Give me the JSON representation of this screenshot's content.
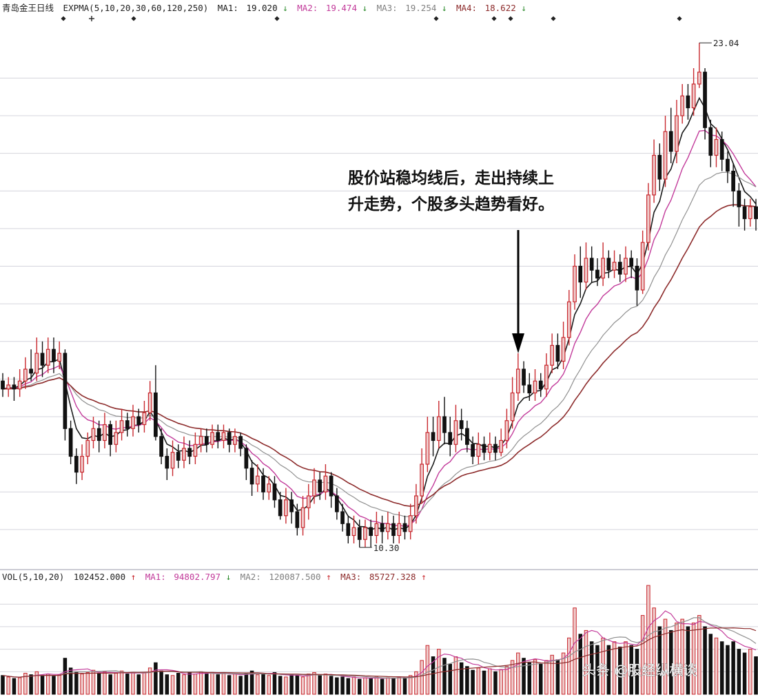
{
  "colors": {
    "up": "#c8282e",
    "down": "#111111",
    "ma1": "#1a1a1a",
    "ma2": "#c23a9a",
    "ma3": "#909090",
    "ma4": "#8c2a2a",
    "grid": "#d4d4dc",
    "sep": "#9a9aa8",
    "up_fill": "#efcaca"
  },
  "header": {
    "title": "青岛金王日线",
    "indicator": "EXPMA(5,10,20,30,60,120,250)",
    "ma1_label": "MA1:",
    "ma1_value": "19.020",
    "ma1_dir": "↓",
    "ma2_label": "MA2:",
    "ma2_value": "19.474",
    "ma2_dir": "↓",
    "ma3_label": "MA3:",
    "ma3_value": "19.254",
    "ma3_dir": "↓",
    "ma4_label": "MA4:",
    "ma4_value": "18.622",
    "ma4_dir": "↓"
  },
  "vol_header": {
    "indicator": "VOL(5,10,20)",
    "value": "102452.000",
    "value_dir": "↑",
    "ma1_label": "MA1:",
    "ma1_value": "94802.797",
    "ma1_dir": "↓",
    "ma2_label": "MA2:",
    "ma2_value": "120087.500",
    "ma2_dir": "↑",
    "ma3_label": "MA3:",
    "ma3_value": "85727.328",
    "ma3_dir": "↑"
  },
  "annotation": {
    "line1": "股价站稳均线后，走出持续上",
    "line2": "升走势，个股多头趋势看好。"
  },
  "watermark": "头条 @股经纵横谈",
  "chart_data": {
    "type": "candlestick",
    "title": "青岛金王日线",
    "high_label": "23.04",
    "low_label": "10.30",
    "high_value": 23.04,
    "low_value": 10.3,
    "price_range": [
      10.0,
      23.6
    ],
    "price_gridlines": [
      10.75,
      11.7,
      12.65,
      13.6,
      14.55,
      15.5,
      16.45,
      17.4,
      18.35,
      19.3,
      20.25,
      21.2,
      22.15
    ],
    "candles": [
      [
        14.5,
        14.3,
        14.7,
        14.1
      ],
      [
        14.3,
        14.4,
        14.6,
        14.1
      ],
      [
        14.4,
        14.3,
        14.6,
        14.0
      ],
      [
        14.3,
        14.5,
        14.8,
        14.1
      ],
      [
        14.5,
        14.8,
        15.1,
        14.3
      ],
      [
        14.8,
        14.7,
        15.3,
        14.5
      ],
      [
        14.7,
        15.2,
        15.6,
        14.5
      ],
      [
        15.2,
        14.9,
        15.5,
        14.6
      ],
      [
        14.9,
        15.3,
        15.6,
        14.7
      ],
      [
        15.3,
        15.0,
        15.6,
        14.7
      ],
      [
        15.0,
        15.2,
        15.5,
        14.8
      ],
      [
        15.2,
        13.3,
        15.3,
        13.0
      ],
      [
        13.3,
        12.6,
        13.5,
        12.4
      ],
      [
        12.6,
        12.2,
        12.8,
        11.9
      ],
      [
        12.2,
        12.6,
        12.9,
        12.0
      ],
      [
        12.6,
        13.0,
        13.2,
        12.4
      ],
      [
        13.0,
        13.3,
        13.6,
        12.8
      ],
      [
        13.3,
        13.0,
        13.5,
        12.7
      ],
      [
        13.0,
        13.4,
        13.7,
        12.8
      ],
      [
        13.4,
        12.9,
        13.5,
        12.6
      ],
      [
        12.9,
        13.2,
        13.5,
        12.7
      ],
      [
        13.2,
        13.5,
        13.8,
        13.0
      ],
      [
        13.5,
        13.3,
        13.7,
        13.1
      ],
      [
        13.3,
        13.6,
        13.9,
        13.1
      ],
      [
        13.6,
        13.4,
        13.8,
        13.2
      ],
      [
        13.4,
        13.7,
        14.0,
        13.2
      ],
      [
        13.7,
        14.2,
        14.5,
        13.5
      ],
      [
        14.2,
        13.1,
        14.9,
        13.0
      ],
      [
        13.1,
        12.6,
        13.3,
        12.4
      ],
      [
        12.6,
        12.3,
        12.8,
        12.0
      ],
      [
        12.3,
        12.7,
        13.0,
        12.1
      ],
      [
        12.7,
        12.5,
        12.9,
        12.3
      ],
      [
        12.5,
        12.8,
        13.1,
        12.3
      ],
      [
        12.8,
        12.6,
        13.0,
        12.4
      ],
      [
        12.6,
        12.9,
        13.2,
        12.4
      ],
      [
        12.9,
        13.1,
        13.3,
        12.7
      ],
      [
        13.1,
        12.9,
        13.3,
        12.7
      ],
      [
        12.9,
        13.2,
        13.4,
        12.8
      ],
      [
        13.2,
        13.0,
        13.4,
        12.8
      ],
      [
        13.0,
        13.2,
        13.4,
        12.8
      ],
      [
        13.2,
        12.9,
        13.3,
        12.7
      ],
      [
        12.9,
        13.1,
        13.3,
        12.7
      ],
      [
        13.1,
        12.8,
        13.2,
        12.6
      ],
      [
        12.8,
        12.3,
        12.9,
        12.0
      ],
      [
        12.3,
        11.9,
        12.5,
        11.6
      ],
      [
        11.9,
        12.1,
        12.4,
        11.7
      ],
      [
        12.1,
        11.7,
        12.3,
        11.5
      ],
      [
        11.7,
        11.9,
        12.1,
        11.5
      ],
      [
        11.9,
        11.5,
        12.1,
        11.3
      ],
      [
        11.5,
        11.1,
        11.7,
        11.0
      ],
      [
        11.1,
        11.5,
        11.8,
        10.9
      ],
      [
        11.5,
        11.2,
        11.7,
        10.9
      ],
      [
        11.2,
        10.8,
        11.4,
        10.6
      ],
      [
        10.8,
        11.3,
        11.6,
        10.6
      ],
      [
        11.3,
        11.6,
        11.9,
        11.0
      ],
      [
        11.6,
        12.0,
        12.3,
        11.4
      ],
      [
        12.0,
        11.7,
        12.2,
        11.5
      ],
      [
        11.7,
        12.1,
        12.4,
        11.5
      ],
      [
        12.1,
        11.6,
        12.2,
        11.3
      ],
      [
        11.6,
        11.2,
        11.8,
        11.0
      ],
      [
        11.2,
        10.9,
        11.4,
        10.7
      ],
      [
        10.9,
        10.6,
        11.1,
        10.4
      ],
      [
        10.6,
        10.8,
        11.1,
        10.4
      ],
      [
        10.8,
        10.5,
        11.0,
        10.3
      ],
      [
        10.5,
        10.8,
        11.0,
        10.3
      ],
      [
        10.8,
        10.6,
        11.0,
        10.3
      ],
      [
        10.6,
        10.9,
        11.2,
        10.4
      ],
      [
        10.9,
        10.7,
        11.1,
        10.4
      ],
      [
        10.7,
        10.9,
        11.2,
        10.5
      ],
      [
        10.9,
        10.6,
        11.1,
        10.4
      ],
      [
        10.6,
        10.9,
        11.2,
        10.4
      ],
      [
        10.9,
        10.7,
        11.1,
        10.5
      ],
      [
        10.7,
        11.1,
        11.4,
        10.5
      ],
      [
        11.1,
        11.6,
        11.9,
        10.9
      ],
      [
        11.6,
        12.4,
        12.8,
        11.4
      ],
      [
        12.4,
        13.2,
        13.6,
        12.2
      ],
      [
        13.2,
        13.0,
        13.6,
        12.6
      ],
      [
        13.0,
        13.6,
        14.0,
        12.8
      ],
      [
        13.6,
        13.2,
        14.1,
        12.9
      ],
      [
        13.2,
        12.9,
        13.6,
        12.6
      ],
      [
        12.9,
        13.5,
        13.9,
        12.7
      ],
      [
        13.5,
        13.3,
        13.8,
        13.0
      ],
      [
        13.3,
        12.9,
        13.5,
        12.7
      ],
      [
        12.9,
        12.6,
        13.1,
        12.4
      ],
      [
        12.6,
        12.9,
        13.2,
        12.4
      ],
      [
        12.9,
        12.7,
        13.1,
        12.5
      ],
      [
        12.7,
        12.9,
        13.2,
        12.5
      ],
      [
        12.9,
        12.7,
        13.1,
        12.5
      ],
      [
        12.7,
        13.0,
        13.3,
        12.6
      ],
      [
        13.0,
        13.5,
        13.8,
        12.8
      ],
      [
        13.5,
        14.2,
        14.6,
        13.3
      ],
      [
        14.2,
        14.8,
        15.2,
        14.0
      ],
      [
        14.8,
        14.4,
        15.0,
        14.2
      ],
      [
        14.4,
        14.2,
        14.7,
        14.0
      ],
      [
        14.2,
        14.5,
        14.8,
        14.0
      ],
      [
        14.5,
        14.3,
        14.7,
        14.1
      ],
      [
        14.3,
        14.9,
        15.2,
        14.1
      ],
      [
        14.9,
        15.4,
        15.7,
        14.7
      ],
      [
        15.4,
        15.0,
        15.7,
        14.8
      ],
      [
        15.0,
        15.6,
        16.0,
        14.8
      ],
      [
        15.6,
        16.5,
        16.8,
        15.4
      ],
      [
        16.5,
        17.4,
        17.7,
        16.3
      ],
      [
        17.4,
        17.0,
        17.9,
        16.6
      ],
      [
        17.0,
        17.6,
        18.0,
        16.8
      ],
      [
        17.6,
        17.3,
        17.9,
        17.0
      ],
      [
        17.3,
        17.1,
        17.6,
        16.9
      ],
      [
        17.1,
        17.6,
        18.0,
        16.9
      ],
      [
        17.6,
        17.3,
        17.8,
        17.1
      ],
      [
        17.3,
        17.5,
        17.8,
        17.1
      ],
      [
        17.5,
        17.2,
        17.7,
        17.0
      ],
      [
        17.2,
        17.6,
        17.9,
        17.0
      ],
      [
        17.6,
        17.4,
        17.8,
        17.1
      ],
      [
        17.4,
        16.8,
        17.6,
        16.4
      ],
      [
        16.8,
        18.0,
        18.3,
        16.7
      ],
      [
        18.0,
        19.2,
        19.5,
        17.8
      ],
      [
        19.2,
        20.2,
        20.6,
        19.0
      ],
      [
        20.2,
        19.6,
        20.5,
        19.3
      ],
      [
        19.6,
        20.8,
        21.2,
        19.4
      ],
      [
        20.8,
        20.3,
        21.4,
        20.0
      ],
      [
        20.3,
        21.2,
        21.6,
        20.0
      ],
      [
        21.2,
        21.7,
        22.0,
        21.0
      ],
      [
        21.7,
        21.4,
        22.0,
        21.1
      ],
      [
        21.4,
        22.0,
        22.4,
        21.2
      ],
      [
        22.0,
        22.3,
        23.04,
        21.9
      ],
      [
        22.3,
        20.9,
        22.4,
        20.6
      ],
      [
        20.9,
        20.2,
        21.1,
        19.9
      ],
      [
        20.2,
        20.6,
        20.9,
        19.9
      ],
      [
        20.6,
        20.1,
        20.8,
        19.8
      ],
      [
        20.1,
        19.8,
        20.3,
        19.5
      ],
      [
        19.8,
        19.3,
        20.0,
        18.9
      ],
      [
        19.3,
        18.9,
        19.5,
        18.4
      ],
      [
        18.9,
        18.6,
        19.1,
        18.3
      ],
      [
        18.6,
        18.9,
        19.1,
        18.4
      ],
      [
        18.9,
        18.6,
        19.1,
        18.3
      ]
    ],
    "volumes": [
      50,
      46,
      42,
      44,
      56,
      52,
      60,
      50,
      54,
      48,
      52,
      96,
      70,
      60,
      54,
      58,
      64,
      56,
      60,
      52,
      56,
      62,
      54,
      58,
      52,
      58,
      70,
      84,
      62,
      52,
      50,
      56,
      52,
      58,
      54,
      60,
      54,
      58,
      52,
      56,
      50,
      54,
      48,
      56,
      62,
      52,
      56,
      50,
      58,
      48,
      46,
      52,
      50,
      46,
      54,
      58,
      50,
      54,
      48,
      44,
      46,
      42,
      46,
      40,
      44,
      42,
      46,
      40,
      44,
      42,
      46,
      44,
      50,
      60,
      90,
      130,
      100,
      120,
      96,
      80,
      100,
      84,
      74,
      64,
      70,
      62,
      68,
      60,
      66,
      74,
      90,
      110,
      96,
      84,
      92,
      80,
      90,
      104,
      92,
      110,
      150,
      230,
      160,
      170,
      140,
      130,
      150,
      130,
      140,
      126,
      140,
      130,
      120,
      210,
      290,
      230,
      180,
      200,
      170,
      190,
      200,
      180,
      190,
      210,
      180,
      160,
      150,
      140,
      130,
      140,
      120,
      110,
      120,
      100
    ],
    "volume_range": [
      0,
      290
    ]
  }
}
